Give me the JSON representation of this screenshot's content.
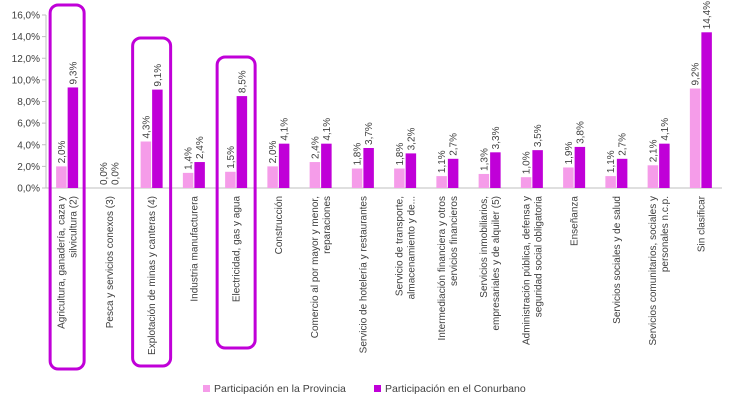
{
  "chart_data": {
    "type": "bar",
    "title": "",
    "xlabel": "",
    "ylabel": "",
    "ylim": [
      0,
      16
    ],
    "y_ticks": [
      "0,0%",
      "2,0%",
      "4,0%",
      "6,0%",
      "8,0%",
      "10,0%",
      "12,0%",
      "14,0%",
      "16,0%"
    ],
    "grid": false,
    "legend_position": "bottom",
    "categories": [
      [
        "Agricultura, ganadería, caza y",
        "silvicultura (2)"
      ],
      [
        "Pesca y servicios conexos (3)"
      ],
      [
        "Explotación de minas y canteras (4)"
      ],
      [
        "Industria manufacturera"
      ],
      [
        "Electricidad, gas y agua"
      ],
      [
        "Construcción"
      ],
      [
        "Comercio al por mayor y menor,",
        "reparaciones"
      ],
      [
        "Servicio de hotelería y restaurantes"
      ],
      [
        "Servicio de transporte,",
        "almacenamiento y de..."
      ],
      [
        "Intermediación financiera y otros",
        "servicios financieros"
      ],
      [
        "Servicios inmobiliarios,",
        "empresariales y de alquiler (5)"
      ],
      [
        "Administración pública, defensa y",
        "seguridad social obligatoria"
      ],
      [
        "Enseñanza"
      ],
      [
        "Servicios sociales y de salud"
      ],
      [
        "Servicios comunitarios, sociales y",
        "personales n.c.p."
      ],
      [
        "Sin clasificar"
      ]
    ],
    "series": [
      {
        "name": "Participación en la Provincia",
        "color": "#f59ce9",
        "values": [
          2.0,
          0.0,
          4.3,
          1.4,
          1.5,
          2.0,
          2.4,
          1.8,
          1.8,
          1.1,
          1.3,
          1.0,
          1.9,
          1.1,
          2.1,
          9.2
        ],
        "labels": [
          "2,0%",
          "0,0%",
          "4,3%",
          "1,4%",
          "1,5%",
          "2,0%",
          "2,4%",
          "1,8%",
          "1,8%",
          "1,1%",
          "1,3%",
          "1,0%",
          "1,9%",
          "1,1%",
          "2,1%",
          "9,2%"
        ]
      },
      {
        "name": "Participación en el Conurbano",
        "color": "#c000d8",
        "values": [
          9.3,
          0.0,
          9.1,
          2.4,
          8.5,
          4.1,
          4.1,
          3.7,
          3.2,
          2.7,
          3.3,
          3.5,
          3.8,
          2.7,
          4.1,
          14.4
        ],
        "labels": [
          "9,3%",
          "0,0%",
          "9,1%",
          "2,4%",
          "8,5%",
          "4,1%",
          "4,1%",
          "3,7%",
          "3,2%",
          "2,7%",
          "3,3%",
          "3,5%",
          "3,8%",
          "2,7%",
          "4,1%",
          "14,4%"
        ]
      }
    ],
    "highlighted_categories": [
      0,
      2,
      4
    ],
    "highlight_color": "#c000d8"
  }
}
